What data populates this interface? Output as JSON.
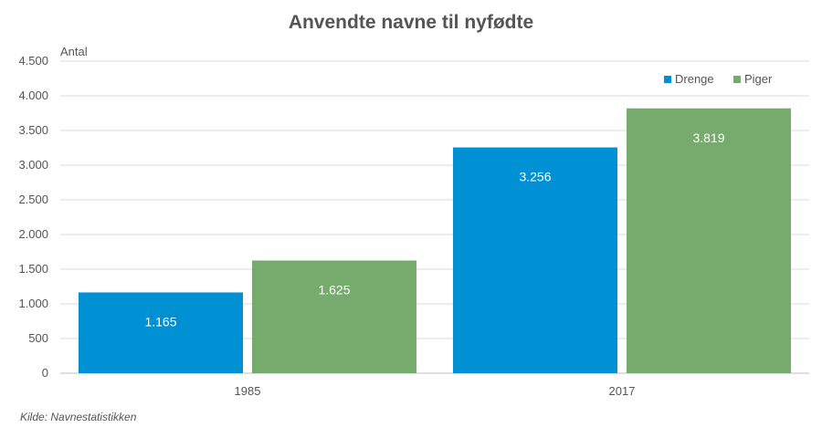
{
  "chart_data": {
    "type": "bar",
    "title": "Anvendte navne til nyfødte",
    "ylabel": "Antal",
    "xlabel": "",
    "categories": [
      "1985",
      "2017"
    ],
    "series": [
      {
        "name": "Drenge",
        "values": [
          1165,
          3256
        ],
        "labels": [
          "1.165",
          "3.256"
        ],
        "color": "#0091D5"
      },
      {
        "name": "Piger",
        "values": [
          1625,
          3819
        ],
        "labels": [
          "1.625",
          "3.819"
        ],
        "color": "#77AB6E"
      }
    ],
    "ylim": [
      0,
      4500
    ],
    "yticks": [
      0,
      500,
      1000,
      1500,
      2000,
      2500,
      3000,
      3500,
      4000,
      4500
    ],
    "ytick_labels": [
      "0",
      "500",
      "1.000",
      "1.500",
      "2.000",
      "2.500",
      "3.000",
      "3.500",
      "4.000",
      "4.500"
    ],
    "grid": true,
    "legend_position": "top-right",
    "source": "Kilde: Navnestatistikken"
  },
  "colors": {
    "gridline": "#d9d9d9",
    "axis": "#bfbfbf",
    "text": "#555555"
  }
}
